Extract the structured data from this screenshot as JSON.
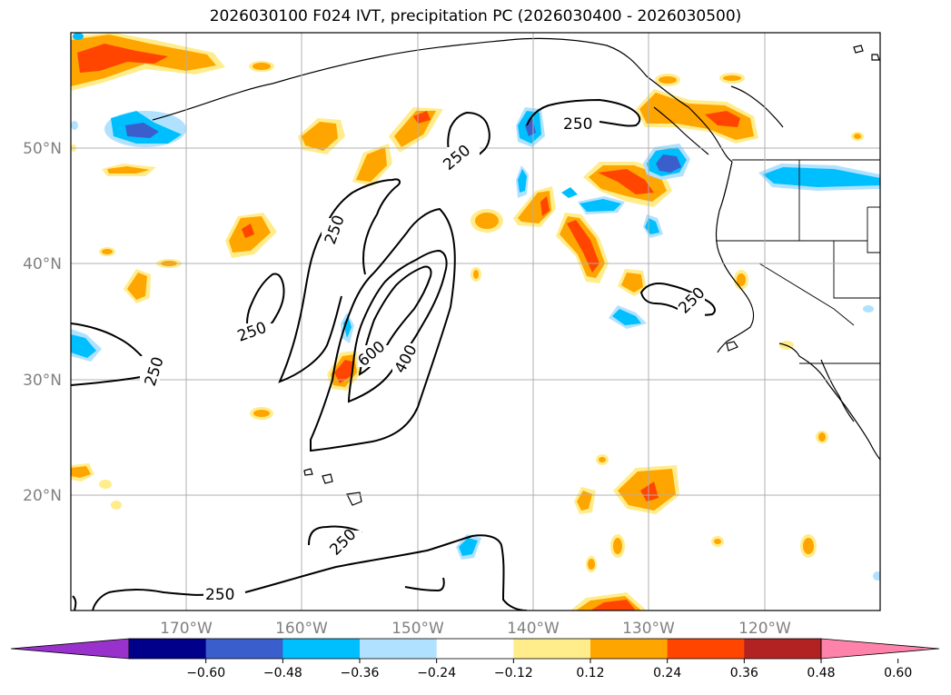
{
  "title": "2026030100 F024 IVT, precipitation PC (2026030400 - 2026030500)",
  "map": {
    "lon_range": [
      -180,
      -110
    ],
    "lat_range": [
      10,
      60
    ],
    "lon_ticks": [
      "170°W",
      "160°W",
      "150°W",
      "140°W",
      "130°W",
      "120°W"
    ],
    "lat_ticks": [
      "20°N",
      "30°N",
      "40°N",
      "50°N"
    ],
    "grid": true,
    "ivt_contour_labels": [
      "250",
      "250",
      "250",
      "250",
      "250",
      "250",
      "250",
      "250",
      "400",
      "600"
    ]
  },
  "colorbar": {
    "tick_labels": [
      "−0.60",
      "−0.48",
      "−0.36",
      "−0.24",
      "−0.12",
      "0.12",
      "0.24",
      "0.36",
      "0.48",
      "0.60"
    ],
    "colors": [
      "#9932cc",
      "#00008b",
      "#3a5fcd",
      "#00bfff",
      "#b0e2ff",
      "#ffffff",
      "#ffec8b",
      "#ffa500",
      "#ff4500",
      "#b22222",
      "#ff82ab"
    ]
  }
}
